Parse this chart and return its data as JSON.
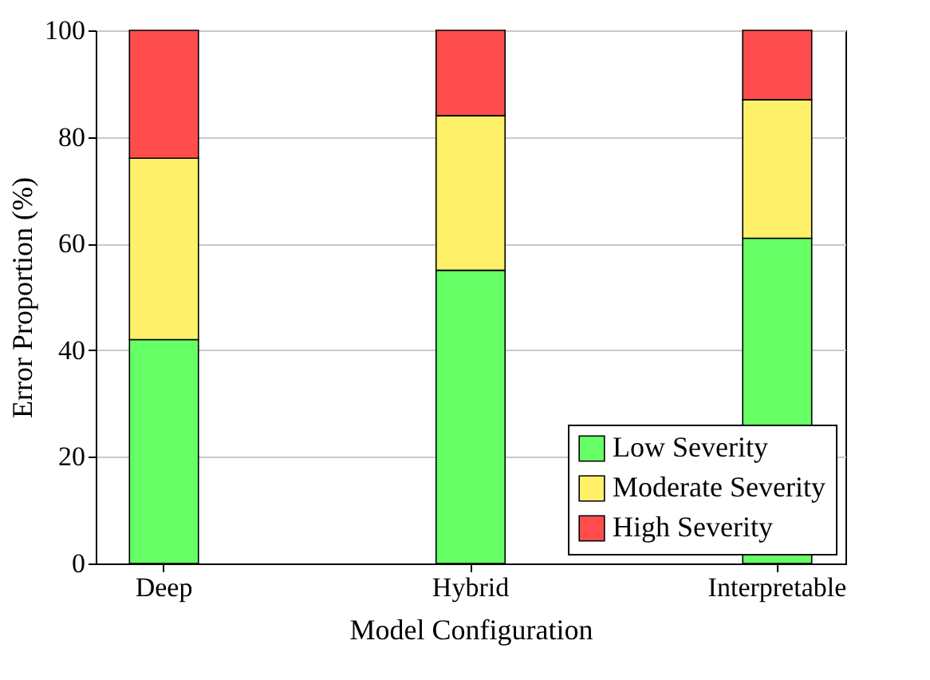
{
  "chart_data": {
    "type": "bar",
    "stacked": true,
    "xlabel": "Model Configuration",
    "ylabel": "Error Proportion (%)",
    "categories": [
      "Deep",
      "Hybrid",
      "Interpretable"
    ],
    "series": [
      {
        "name": "Low Severity",
        "color": "#66ff66",
        "values": [
          42,
          55,
          61
        ]
      },
      {
        "name": "Moderate Severity",
        "color": "#fff06a",
        "values": [
          34,
          29,
          26
        ]
      },
      {
        "name": "High Severity",
        "color": "#ff4d4d",
        "values": [
          24,
          16,
          13
        ]
      }
    ],
    "ylim": [
      0,
      100
    ],
    "yticks": [
      0,
      20,
      40,
      60,
      80,
      100
    ],
    "grid": "y",
    "legend": "bottom right"
  }
}
